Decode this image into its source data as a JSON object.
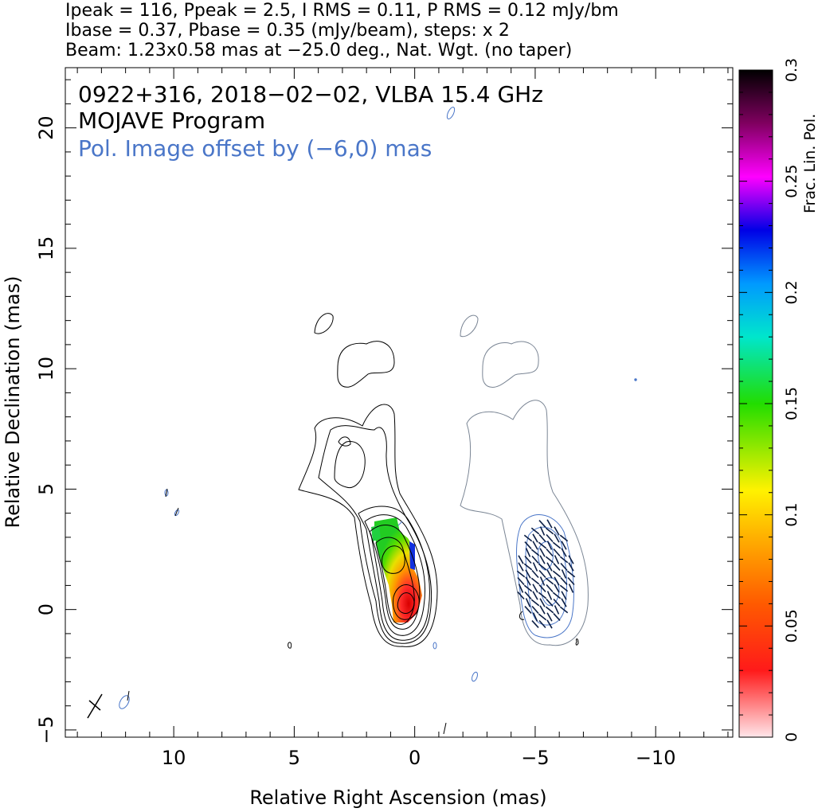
{
  "header": {
    "line1": "Ipeak = 116, Ppeak = 2.5, I RMS = 0.11, P RMS = 0.12 mJy/bm",
    "line2": "Ibase = 0.37, Pbase = 0.35 (mJy/beam), steps: x 2",
    "line3": "Beam: 1.23x0.58 mas at −25.0 deg., Nat. Wgt. (no taper)"
  },
  "annotations": {
    "source": "0922+316, 2018−02−02, VLBA 15.4 GHz",
    "program": "MOJAVE Program",
    "offset_note": "Pol. Image offset by (−6,0) mas"
  },
  "colors": {
    "total_intensity_contours": "#000000",
    "pol_contours": "#4a76c8",
    "pol_outline": "#7a8594",
    "offset_note": "#4a76c8"
  },
  "chart_data": {
    "type": "heatmap",
    "xlabel": "Relative Right Ascension (mas)",
    "ylabel": "Relative Declination (mas)",
    "xlim": [
      14.5,
      -13.2
    ],
    "ylim": [
      -5.3,
      22.5
    ],
    "x_ticks": [
      10,
      5,
      0,
      -5,
      -10
    ],
    "x_tick_labels": [
      "10",
      "5",
      "0",
      "−5",
      "−10"
    ],
    "y_ticks": [
      -5,
      0,
      5,
      10,
      15,
      20
    ],
    "y_tick_labels": [
      "−5",
      "0",
      "5",
      "10",
      "15",
      "20"
    ],
    "colorbar": {
      "label": "Frac. Lin. Pol.",
      "range": [
        0,
        0.3
      ],
      "ticks": [
        0,
        0.05,
        0.1,
        0.15,
        0.2,
        0.25,
        0.3
      ],
      "tick_labels": [
        "0",
        "0.05",
        "0.1",
        "0.15",
        "0.2",
        "0.25",
        "0.3"
      ]
    },
    "beam": {
      "major_mas": 1.23,
      "minor_mas": 0.58,
      "pa_deg": -25.0,
      "position": "bottom-left"
    },
    "core_position": [
      0,
      0
    ],
    "pol_offset_mas": [
      -6,
      0
    ],
    "intensity_peak_mJy_per_beam": 116,
    "pol_peak_mJy_per_beam": 2.5,
    "contour_base_mJy_per_beam": 0.37,
    "contour_step_factor": 2,
    "grid": false,
    "legend": "none"
  }
}
